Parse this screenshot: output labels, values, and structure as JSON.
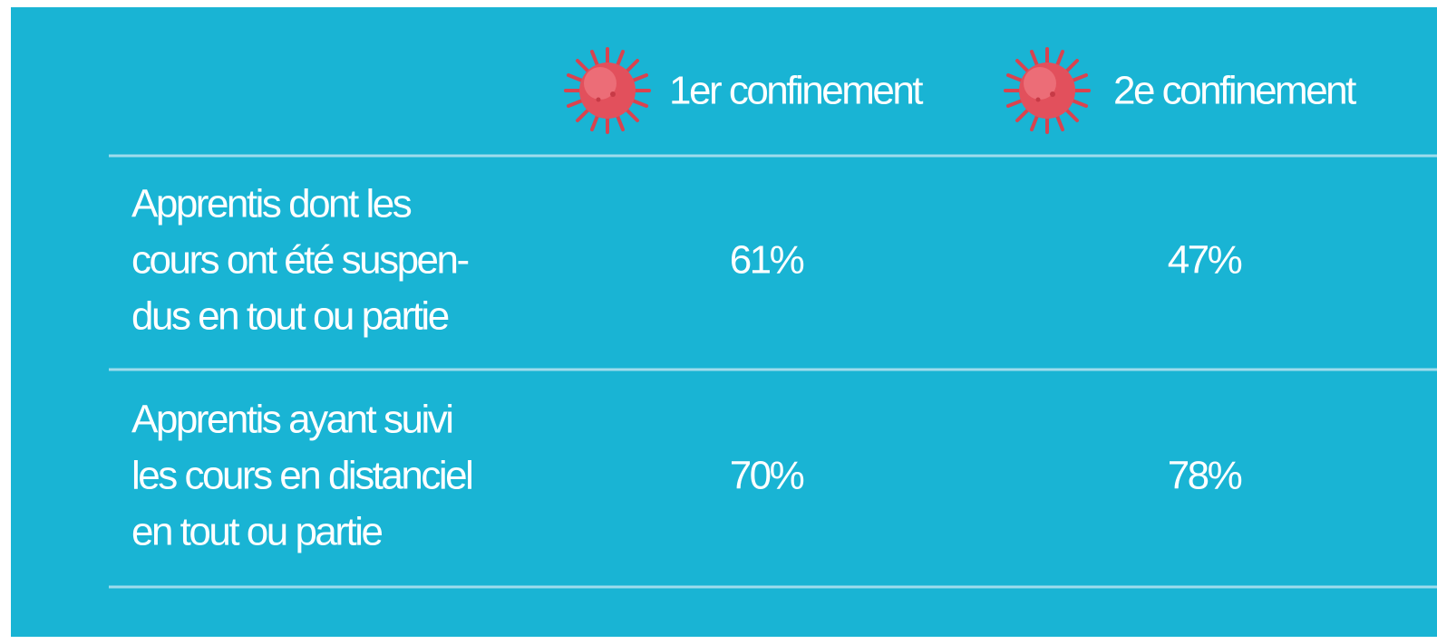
{
  "table": {
    "columns": [
      "1er confinement",
      "2e confinement"
    ],
    "rows": [
      {
        "label": [
          "Apprentis dont les",
          "cours ont été suspen-",
          "dus en tout ou partie"
        ],
        "values": [
          "61%",
          "47%"
        ]
      },
      {
        "label": [
          "Apprentis ayant suivi",
          "les cours en distanciel",
          "en tout ou partie"
        ],
        "values": [
          "70%",
          "78%"
        ]
      }
    ]
  }
}
